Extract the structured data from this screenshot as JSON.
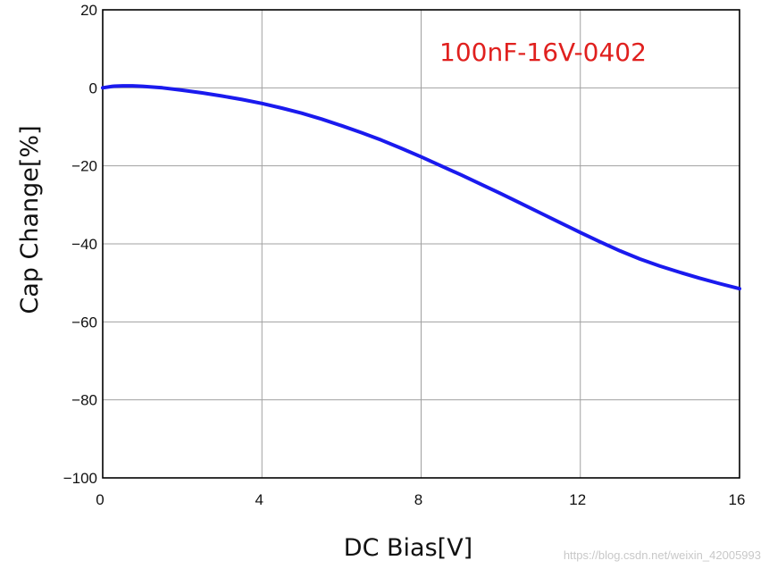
{
  "chart_data": {
    "type": "line",
    "title": "",
    "xlabel": "DC Bias[V]",
    "ylabel": "Cap Change[%]",
    "xlim": [
      0,
      16
    ],
    "ylim": [
      -100,
      20
    ],
    "xticks": [
      0,
      4,
      8,
      12,
      16
    ],
    "yticks": [
      20,
      0,
      -20,
      -40,
      -60,
      -80,
      -100
    ],
    "xtick_labels": [
      "0",
      "4",
      "8",
      "12",
      "16"
    ],
    "ytick_labels": [
      "20",
      "0",
      "−20",
      "−40",
      "−60",
      "−80",
      "−100"
    ],
    "grid": true,
    "annotation": "100nF-16V-0402",
    "series": [
      {
        "color": "#1a1aee",
        "x": [
          0,
          0.25,
          0.5,
          0.75,
          1,
          1.5,
          2,
          2.5,
          3,
          3.5,
          4,
          4.5,
          5,
          5.5,
          6,
          6.5,
          7,
          7.5,
          8,
          8.5,
          9,
          9.5,
          10,
          10.5,
          11,
          11.5,
          12,
          12.5,
          13,
          13.5,
          14,
          14.5,
          15,
          15.5,
          16
        ],
        "y": [
          0.0,
          0.4,
          0.5,
          0.5,
          0.4,
          0.0,
          -0.6,
          -1.3,
          -2.1,
          -3.0,
          -4.0,
          -5.2,
          -6.5,
          -8.0,
          -9.7,
          -11.5,
          -13.4,
          -15.5,
          -17.7,
          -20.0,
          -22.3,
          -24.7,
          -27.1,
          -29.6,
          -32.1,
          -34.6,
          -37.1,
          -39.5,
          -41.8,
          -43.9,
          -45.7,
          -47.3,
          -48.8,
          -50.2,
          -51.5
        ]
      }
    ]
  },
  "watermark": "https://blog.csdn.net/weixin_42005993",
  "colors": {
    "line": "#1a1aee",
    "annotation": "#e0201e",
    "grid": "#a0a0a0"
  }
}
